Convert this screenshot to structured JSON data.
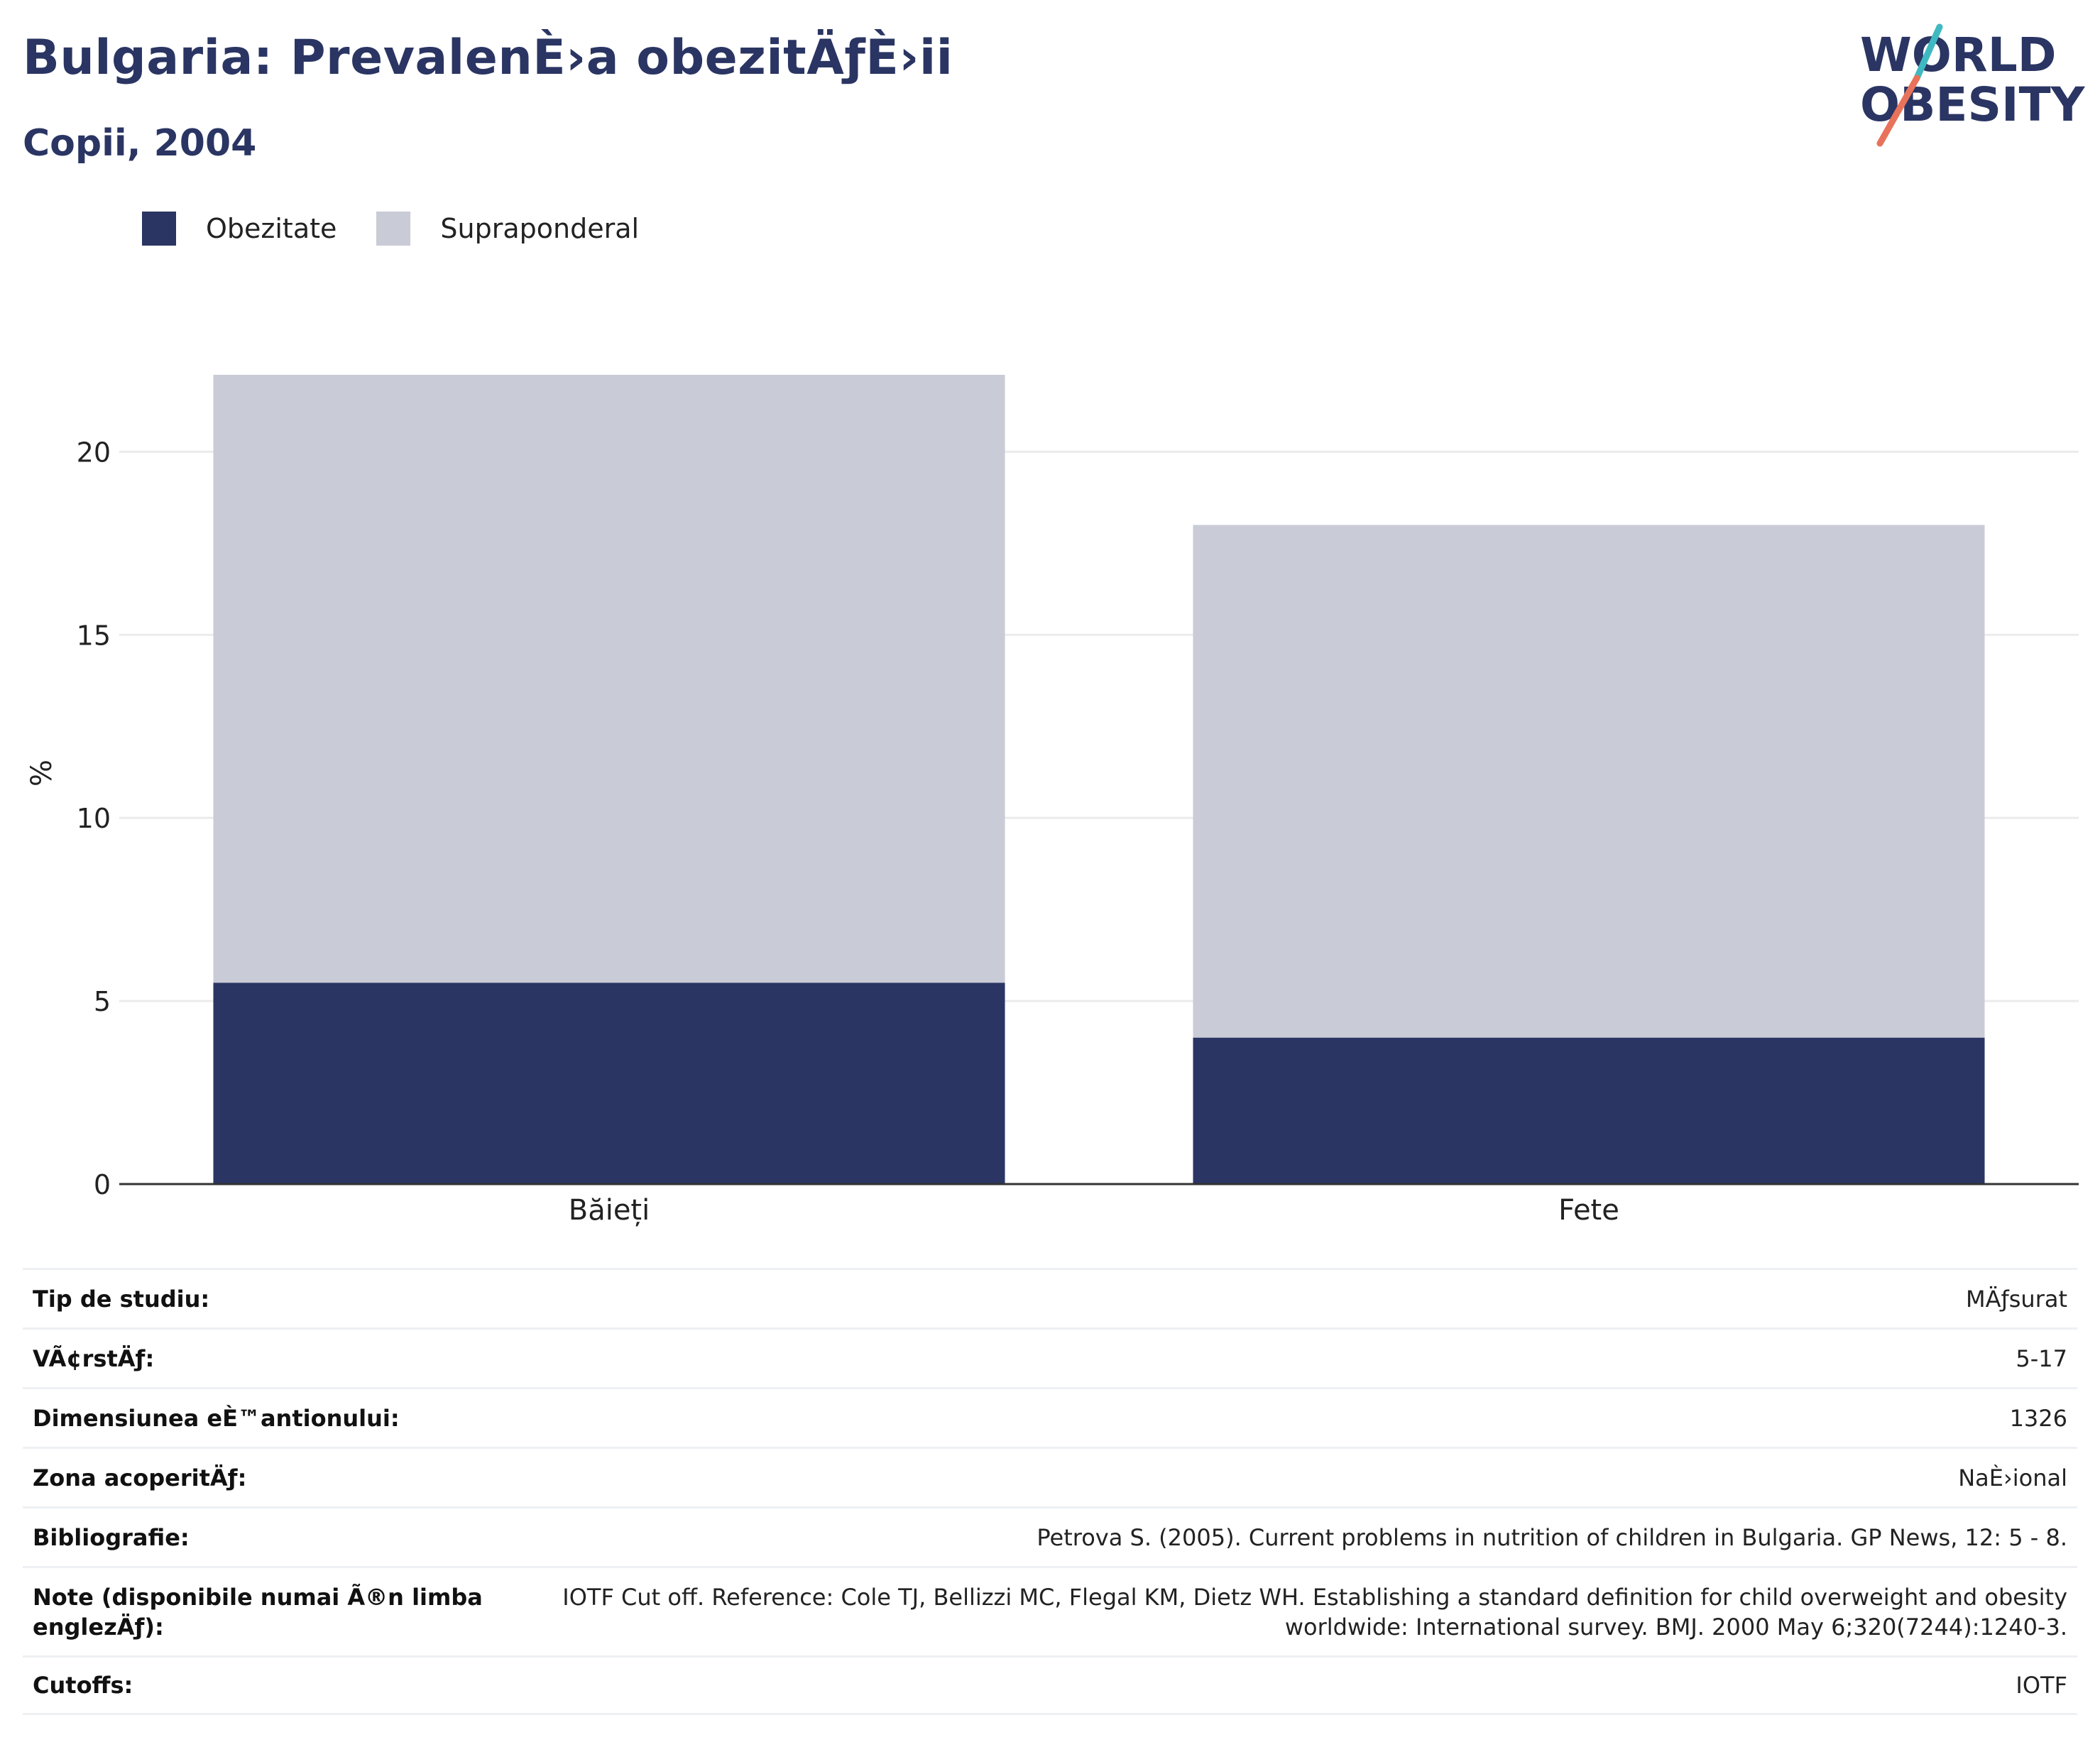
{
  "header": {
    "title": "Bulgaria: PrevalenÈ›a obezitÄƒÈ›ii",
    "subtitle": "Copii, 2004"
  },
  "logo": {
    "line1": "WORLD",
    "line2": "OBESITY",
    "colors": {
      "text": "#2a3563",
      "slash_top": "#3fb9c1",
      "slash_bottom": "#e8735a"
    }
  },
  "legend": {
    "items": [
      {
        "label": "Obezitate",
        "color": "#2a3563"
      },
      {
        "label": "Supraponderal",
        "color": "#c9cbd6"
      }
    ]
  },
  "chart_data": {
    "type": "bar",
    "stacked": true,
    "categories": [
      "Băieți",
      "Fete"
    ],
    "series": [
      {
        "name": "Obezitate",
        "color": "#2a3563",
        "values": [
          5.5,
          4.0
        ]
      },
      {
        "name": "Supraponderal",
        "color": "#c9cbd6",
        "values": [
          16.6,
          14.0
        ]
      }
    ],
    "ylabel": "%",
    "ylim": [
      0,
      24
    ],
    "yticks": [
      0,
      5,
      10,
      15,
      20
    ],
    "grid": true,
    "legend_position": "top-left"
  },
  "info_table": [
    {
      "label": "Tip de studiu:",
      "value": "MÄƒsurat"
    },
    {
      "label": "VÃ¢rstÄƒ:",
      "value": "5-17"
    },
    {
      "label": "Dimensiunea eÈ™antionului:",
      "value": "1326"
    },
    {
      "label": "Zona acoperitÄƒ:",
      "value": "NaÈ›ional"
    },
    {
      "label": "Bibliografie:",
      "value": "Petrova S. (2005). Current problems in nutrition of children in Bulgaria. GP News, 12: 5 - 8."
    },
    {
      "label": "Note (disponibile numai Ã®n limba englezÄƒ):",
      "value": "IOTF Cut off. Reference: Cole TJ, Bellizzi MC, Flegal KM, Dietz WH. Establishing a standard definition for child overweight and obesity worldwide: International survey. BMJ. 2000 May 6;320(7244):1240-3."
    },
    {
      "label": "Cutoffs:",
      "value": "IOTF"
    }
  ]
}
